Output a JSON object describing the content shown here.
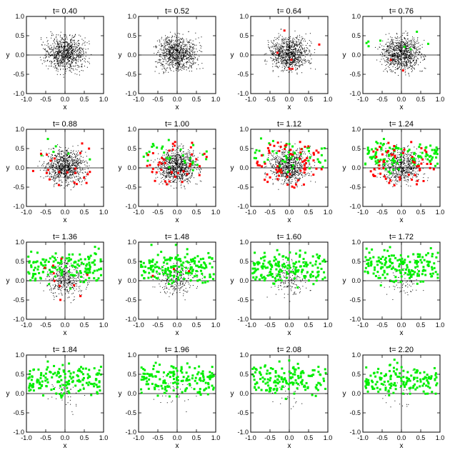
{
  "figure": {
    "layout": "4x4 grid of scatter snapshots",
    "colors": {
      "background_points": "#000000",
      "red_points": "#ff0000",
      "green_points": "#00ee00",
      "axes": "#000000"
    }
  },
  "chart_data": [
    {
      "type": "scatter",
      "title": "t= 0.40",
      "xlabel": "x",
      "ylabel": "y",
      "xlim": [
        -1,
        1
      ],
      "ylim": [
        -1,
        1
      ],
      "xticks": [
        "-1.0",
        "-0.5",
        "0.0",
        "0.5",
        "1.0"
      ],
      "yticks": [
        "-1.0",
        "-0.5",
        "0.0",
        "0.5",
        "1.0"
      ],
      "grid": false,
      "black_density": 1.0,
      "red_count": 0,
      "green_count": 0
    },
    {
      "type": "scatter",
      "title": "t= 0.52",
      "xlabel": "x",
      "ylabel": "y",
      "xlim": [
        -1,
        1
      ],
      "ylim": [
        -1,
        1
      ],
      "xticks": [
        "-1.0",
        "-0.5",
        "0.0",
        "0.5",
        "1.0"
      ],
      "yticks": [
        "-1.0",
        "-0.5",
        "0.0",
        "0.5",
        "1.0"
      ],
      "grid": false,
      "black_density": 1.0,
      "red_count": 0,
      "green_count": 0
    },
    {
      "type": "scatter",
      "title": "t= 0.64",
      "xlabel": "x",
      "ylabel": "y",
      "xlim": [
        -1,
        1
      ],
      "ylim": [
        -1,
        1
      ],
      "xticks": [
        "-1.0",
        "-0.5",
        "0.0",
        "0.5",
        "1.0"
      ],
      "yticks": [
        "-1.0",
        "-0.5",
        "0.0",
        "0.5",
        "1.0"
      ],
      "grid": false,
      "black_density": 1.0,
      "red_count": 6,
      "green_count": 0
    },
    {
      "type": "scatter",
      "title": "t= 0.76",
      "xlabel": "x",
      "ylabel": "y",
      "xlim": [
        -1,
        1
      ],
      "ylim": [
        -1,
        1
      ],
      "xticks": [
        "-1.0",
        "-0.5",
        "0.0",
        "0.5",
        "1.0"
      ],
      "yticks": [
        "-1.0",
        "-0.5",
        "0.0",
        "0.5",
        "1.0"
      ],
      "grid": false,
      "black_density": 1.0,
      "red_count": 2,
      "green_count": 8
    },
    {
      "type": "scatter",
      "title": "t= 0.88",
      "xlabel": "x",
      "ylabel": "y",
      "xlim": [
        -1,
        1
      ],
      "ylim": [
        -1,
        1
      ],
      "xticks": [
        "-1.0",
        "-0.5",
        "0.0",
        "0.5",
        "1.0"
      ],
      "yticks": [
        "-1.0",
        "-0.5",
        "0.0",
        "0.5",
        "1.0"
      ],
      "grid": false,
      "black_density": 1.0,
      "red_count": 22,
      "green_count": 6
    },
    {
      "type": "scatter",
      "title": "t= 1.00",
      "xlabel": "x",
      "ylabel": "y",
      "xlim": [
        -1,
        1
      ],
      "ylim": [
        -1,
        1
      ],
      "xticks": [
        "-1.0",
        "-0.5",
        "0.0",
        "0.5",
        "1.0"
      ],
      "yticks": [
        "-1.0",
        "-0.5",
        "0.0",
        "0.5",
        "1.0"
      ],
      "grid": false,
      "black_density": 0.95,
      "red_count": 40,
      "green_count": 30
    },
    {
      "type": "scatter",
      "title": "t= 1.12",
      "xlabel": "x",
      "ylabel": "y",
      "xlim": [
        -1,
        1
      ],
      "ylim": [
        -1,
        1
      ],
      "xticks": [
        "-1.0",
        "-0.5",
        "0.0",
        "0.5",
        "1.0"
      ],
      "yticks": [
        "-1.0",
        "-0.5",
        "0.0",
        "0.5",
        "1.0"
      ],
      "grid": false,
      "black_density": 0.85,
      "red_count": 70,
      "green_count": 50
    },
    {
      "type": "scatter",
      "title": "t= 1.24",
      "xlabel": "x",
      "ylabel": "y",
      "xlim": [
        -1,
        1
      ],
      "ylim": [
        -1,
        1
      ],
      "xticks": [
        "-1.0",
        "-0.5",
        "0.0",
        "0.5",
        "1.0"
      ],
      "yticks": [
        "-1.0",
        "-0.5",
        "0.0",
        "0.5",
        "1.0"
      ],
      "grid": false,
      "black_density": 0.7,
      "red_count": 60,
      "green_count": 110
    },
    {
      "type": "scatter",
      "title": "t= 1.36",
      "xlabel": "x",
      "ylabel": "y",
      "xlim": [
        -1,
        1
      ],
      "ylim": [
        -1,
        1
      ],
      "xticks": [
        "-1.0",
        "-0.5",
        "0.0",
        "0.5",
        "1.0"
      ],
      "yticks": [
        "-1.0",
        "-0.5",
        "0.0",
        "0.5",
        "1.0"
      ],
      "grid": false,
      "black_density": 0.45,
      "red_count": 10,
      "green_count": 150
    },
    {
      "type": "scatter",
      "title": "t= 1.48",
      "xlabel": "x",
      "ylabel": "y",
      "xlim": [
        -1,
        1
      ],
      "ylim": [
        -1,
        1
      ],
      "xticks": [
        "-1.0",
        "-0.5",
        "0.0",
        "0.5",
        "1.0"
      ],
      "yticks": [
        "-1.0",
        "-0.5",
        "0.0",
        "0.5",
        "1.0"
      ],
      "grid": false,
      "black_density": 0.3,
      "red_count": 3,
      "green_count": 170
    },
    {
      "type": "scatter",
      "title": "t= 1.60",
      "xlabel": "x",
      "ylabel": "y",
      "xlim": [
        -1,
        1
      ],
      "ylim": [
        -1,
        1
      ],
      "xticks": [
        "-1.0",
        "-0.5",
        "0.0",
        "0.5",
        "1.0"
      ],
      "yticks": [
        "-1.0",
        "-0.5",
        "0.0",
        "0.5",
        "1.0"
      ],
      "grid": false,
      "black_density": 0.18,
      "red_count": 0,
      "green_count": 170
    },
    {
      "type": "scatter",
      "title": "t= 1.72",
      "xlabel": "x",
      "ylabel": "y",
      "xlim": [
        -1,
        1
      ],
      "ylim": [
        -1,
        1
      ],
      "xticks": [
        "-1.0",
        "-0.5",
        "0.0",
        "0.5",
        "1.0"
      ],
      "yticks": [
        "-1.0",
        "-0.5",
        "0.0",
        "0.5",
        "1.0"
      ],
      "grid": false,
      "black_density": 0.1,
      "red_count": 0,
      "green_count": 170
    },
    {
      "type": "scatter",
      "title": "t= 1.84",
      "xlabel": "x",
      "ylabel": "y",
      "xlim": [
        -1,
        1
      ],
      "ylim": [
        -1,
        1
      ],
      "xticks": [
        "-1.0",
        "-0.5",
        "0.0",
        "0.5",
        "1.0"
      ],
      "yticks": [
        "-1.0",
        "-0.5",
        "0.0",
        "0.5",
        "1.0"
      ],
      "grid": false,
      "black_density": 0.05,
      "red_count": 0,
      "green_count": 160
    },
    {
      "type": "scatter",
      "title": "t= 1.96",
      "xlabel": "x",
      "ylabel": "y",
      "xlim": [
        -1,
        1
      ],
      "ylim": [
        -1,
        1
      ],
      "xticks": [
        "-1.0",
        "-0.5",
        "0.0",
        "0.5",
        "1.0"
      ],
      "yticks": [
        "-1.0",
        "-0.5",
        "0.0",
        "0.5",
        "1.0"
      ],
      "grid": false,
      "black_density": 0.04,
      "red_count": 0,
      "green_count": 160
    },
    {
      "type": "scatter",
      "title": "t= 2.08",
      "xlabel": "x",
      "ylabel": "y",
      "xlim": [
        -1,
        1
      ],
      "ylim": [
        -1,
        1
      ],
      "xticks": [
        "-1.0",
        "-0.5",
        "0.0",
        "0.5",
        "1.0"
      ],
      "yticks": [
        "-1.0",
        "-0.5",
        "0.0",
        "0.5",
        "1.0"
      ],
      "grid": false,
      "black_density": 0.03,
      "red_count": 0,
      "green_count": 150
    },
    {
      "type": "scatter",
      "title": "t= 2.20",
      "xlabel": "x",
      "ylabel": "y",
      "xlim": [
        -1,
        1
      ],
      "ylim": [
        -1,
        1
      ],
      "xticks": [
        "-1.0",
        "-0.5",
        "0.0",
        "0.5",
        "1.0"
      ],
      "yticks": [
        "-1.0",
        "-0.5",
        "0.0",
        "0.5",
        "1.0"
      ],
      "grid": false,
      "black_density": 0.03,
      "red_count": 0,
      "green_count": 150
    }
  ]
}
